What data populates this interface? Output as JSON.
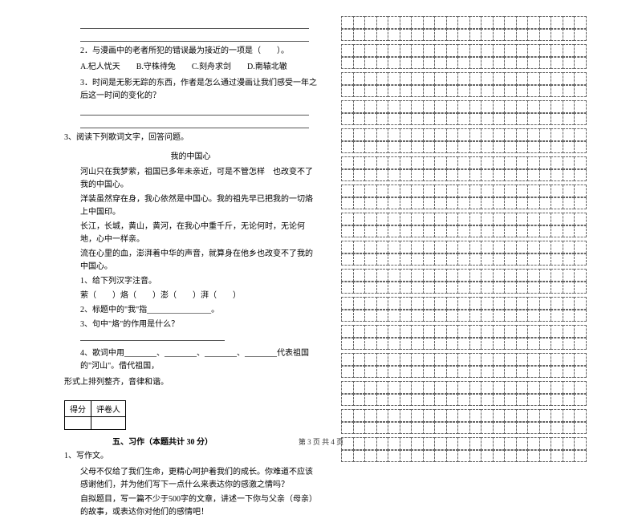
{
  "left": {
    "q2": {
      "text": "2．与漫画中的老者所犯的错误最为接近的一项是（　　）。",
      "options": "A.杞人忧天　　B.守株待兔　　C.刻舟求剑　　D.南辕北辙"
    },
    "q3": "3．时间是无影无踪的东西，作者是怎么通过漫画让我们感受一年之后这一时间的变化的？",
    "reading": {
      "intro": "3、阅读下列歌词文字，回答问题。",
      "title": "我的中国心",
      "lines": [
        "河山只在我梦萦，祖国已多年未亲近，可是不管怎样　也改变不了我的中国心。",
        "洋装虽然穿在身，我心依然是中国心。我的祖先早已把我的一切烙上中国印。",
        "长江，长城，黄山，黄河，在我心中重千斤，无论何时，无论何地，心中一样亲。",
        "流在心里的血，澎湃着中华的声音，就算身在他乡也改变不了我的中国心。"
      ],
      "sub1_label": "1、给下列汉字注音。",
      "sub1_chars": "萦（　　）烙（　　）澎（　　）湃（　　）",
      "sub2": "2、标题中的\"我\"指________________。",
      "sub3": "3、句中\"烙\"的作用是什么？",
      "sub4_a": "4、歌词中用________、________、________、________代表祖国的\"河山\"。借代祖国，",
      "sub4_b": "形式上排列整齐，音律和谐。"
    },
    "scoreRow": [
      "得分",
      "评卷人"
    ],
    "section5": "五、习作（本题共计 30 分）",
    "writing": {
      "label": "1、写作文。",
      "p1": "父母不仅给了我们生命，更精心呵护着我们的成长。你难道不应该感谢他们，并为他们写下一点什么来表达你的感激之情吗？",
      "p2": "自拟题目，写一篇不少于500字的文章，讲述一下你与父亲（母亲）的故事，或表达你对他们的感情吧！"
    }
  },
  "grid": {
    "cols": 21,
    "rowsPerBlock": 2,
    "blocks": 16
  },
  "footerText": "第 3 页 共 4 页",
  "style": {
    "bg": "#ffffff",
    "textColor": "#000000",
    "gridBorder": "#666666"
  }
}
